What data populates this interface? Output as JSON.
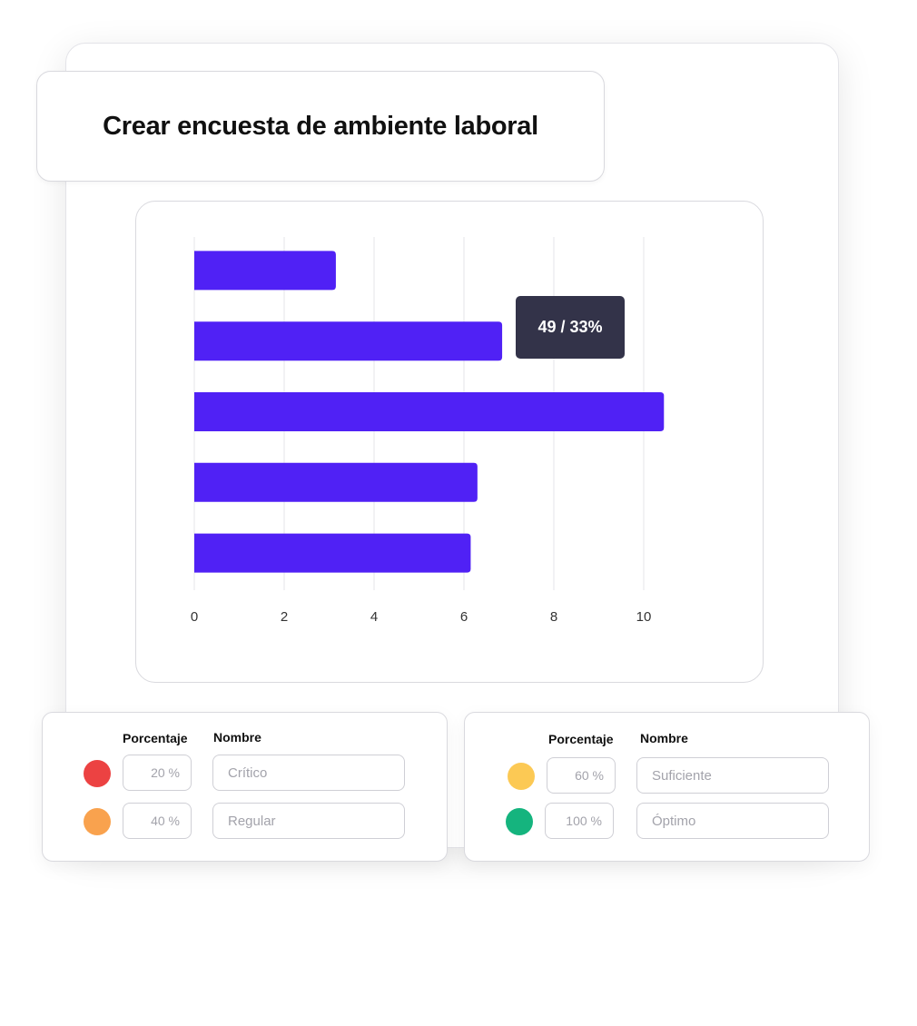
{
  "title": "Crear encuesta de ambiente laboral",
  "tooltip": "49 / 33%",
  "colors": {
    "bar": "#5021f5",
    "tooltip_bg": "#333349",
    "grid": "#e6e6ea"
  },
  "chart_data": {
    "type": "bar",
    "orientation": "horizontal",
    "categories": [
      "",
      "",
      "",
      "",
      ""
    ],
    "values": [
      3.15,
      6.85,
      10.45,
      6.3,
      6.15
    ],
    "xlabel": "",
    "ylabel": "",
    "xlim": [
      0,
      10
    ],
    "xticks": [
      "0",
      "2",
      "4",
      "6",
      "8",
      "10"
    ],
    "grid": true,
    "legend": "none"
  },
  "legend": {
    "header_percentage": "Porcentaje",
    "header_name": "Nombre",
    "levels": [
      {
        "color": "#ec4242",
        "percent": "20 %",
        "name": "Crítico"
      },
      {
        "color": "#f9a24e",
        "percent": "40 %",
        "name": "Regular"
      },
      {
        "color": "#fcc954",
        "percent": "60 %",
        "name": "Suficiente"
      },
      {
        "color": "#15b47e",
        "percent": "100 %",
        "name": "Óptimo"
      }
    ]
  }
}
